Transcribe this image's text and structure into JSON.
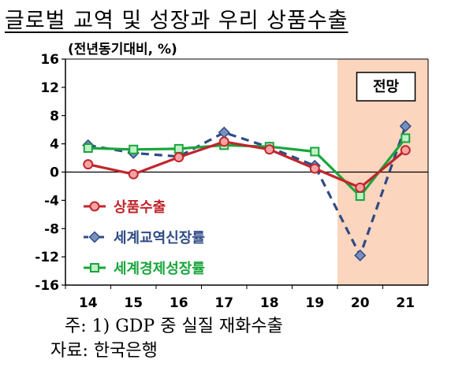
{
  "title": "글로벌 교역 및 성장과 우리 상품수출",
  "unit_label": "(전년동기대비, %)",
  "forecast_label": "전망",
  "note": "주: 1) GDP 중 실질 재화수출",
  "source": "자료: 한국은행",
  "chart_data": {
    "type": "line",
    "x": [
      "14",
      "15",
      "16",
      "17",
      "18",
      "19",
      "20",
      "21"
    ],
    "ylim": [
      -16,
      16
    ],
    "yticks": [
      "16",
      "12",
      "8",
      "4",
      "0",
      "-4",
      "-8",
      "-12",
      "-16"
    ],
    "shaded_region": {
      "from": "20",
      "to": "21",
      "label": "전망",
      "color": "#fbd5bd"
    },
    "series": [
      {
        "name": "상품수출",
        "values": [
          1.1,
          -0.3,
          2.1,
          4.3,
          3.2,
          0.5,
          -2.2,
          3.1
        ],
        "color": "#c0262c",
        "marker": "circle",
        "dash": false
      },
      {
        "name": "세계교역신장률",
        "values": [
          3.8,
          2.7,
          2.2,
          5.6,
          3.5,
          0.9,
          -11.8,
          6.5
        ],
        "color": "#2e4b86",
        "marker": "diamond",
        "dash": true
      },
      {
        "name": "세계경제성장률",
        "values": [
          3.4,
          3.2,
          3.3,
          3.8,
          3.6,
          2.9,
          -3.4,
          4.8
        ],
        "color": "#18a63b",
        "marker": "square",
        "dash": false
      }
    ]
  }
}
